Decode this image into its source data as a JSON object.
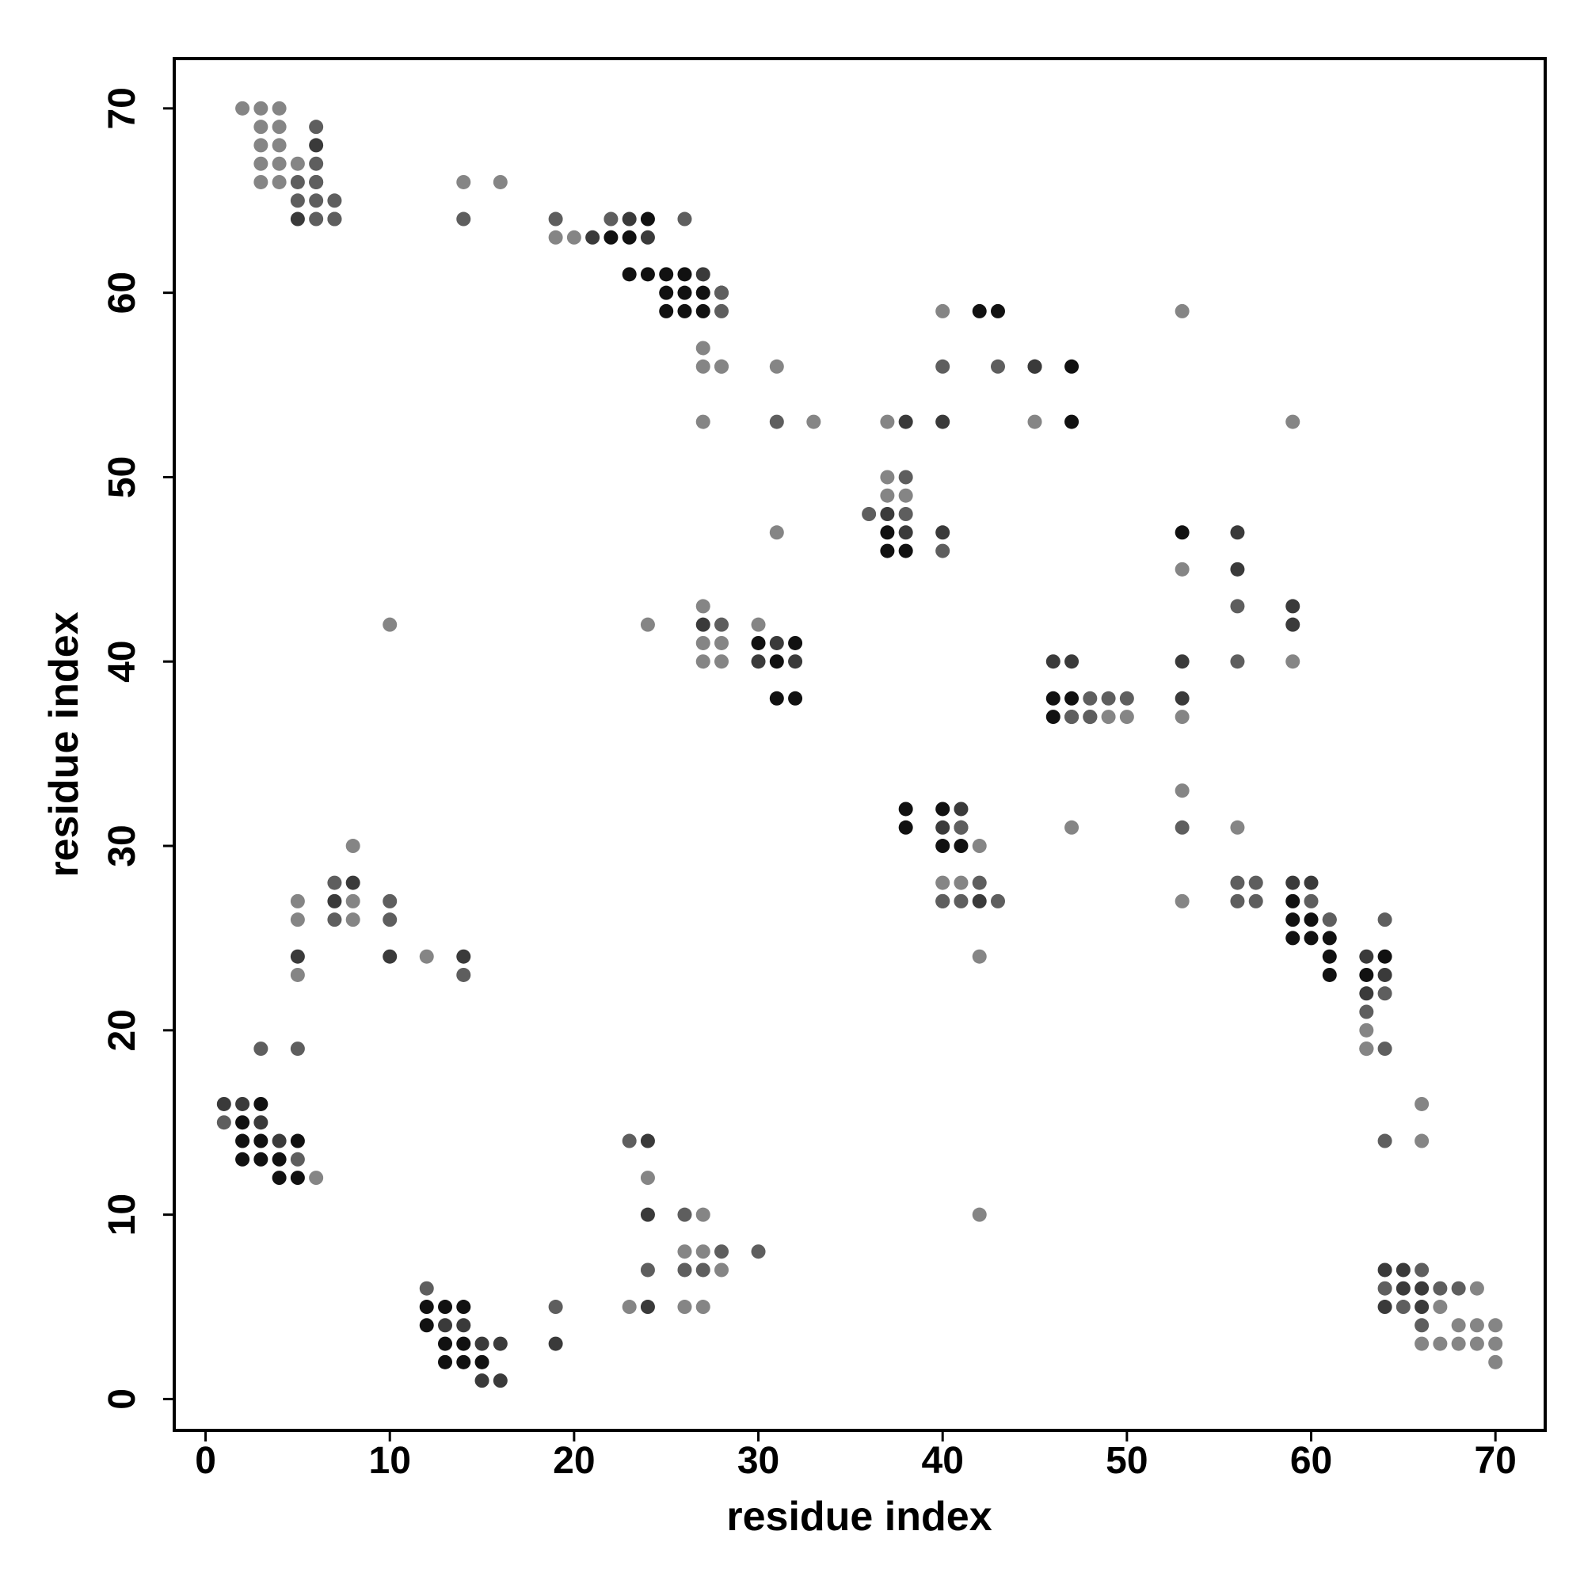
{
  "chart_data": {
    "type": "scatter",
    "xlabel": "residue index",
    "ylabel": "residue index",
    "xlim": [
      -1.7,
      72.7
    ],
    "ylim": [
      -1.7,
      72.7
    ],
    "xticks": [
      0,
      10,
      20,
      30,
      40,
      50,
      60,
      70
    ],
    "yticks": [
      0,
      10,
      20,
      30,
      40,
      50,
      60,
      70
    ],
    "series": [
      {
        "color": "#111111",
        "x": [
          24,
          22,
          23,
          23,
          24,
          25,
          26,
          25,
          26,
          27,
          25,
          26,
          27,
          42,
          43,
          45,
          47,
          47,
          37,
          53,
          37,
          38,
          30,
          32,
          31,
          31,
          32,
          46,
          47,
          46,
          38,
          40,
          38,
          40,
          41,
          59,
          59,
          60,
          59,
          60,
          61,
          61,
          64,
          63,
          61,
          3,
          2,
          2,
          3,
          5,
          2,
          3,
          4,
          4,
          5,
          12,
          13,
          14,
          12,
          13,
          14,
          13,
          14,
          15
        ],
        "y": [
          64,
          63,
          63,
          61,
          61,
          61,
          61,
          60,
          60,
          60,
          59,
          59,
          59,
          59,
          59,
          56,
          56,
          53,
          47,
          47,
          46,
          46,
          41,
          41,
          40,
          38,
          38,
          38,
          38,
          37,
          32,
          32,
          31,
          30,
          30,
          27,
          26,
          26,
          25,
          25,
          25,
          24,
          24,
          23,
          23,
          16,
          15,
          14,
          14,
          14,
          13,
          13,
          13,
          12,
          12,
          5,
          5,
          5,
          4,
          3,
          3,
          2,
          2,
          2
        ]
      },
      {
        "color": "#3a3a3a",
        "x": [
          6,
          6,
          5,
          23,
          21,
          24,
          27,
          28,
          45,
          38,
          40,
          37,
          38,
          40,
          56,
          56,
          59,
          27,
          59,
          31,
          32,
          30,
          46,
          47,
          53,
          53,
          47,
          48,
          41,
          40,
          41,
          8,
          59,
          60,
          7,
          42,
          61,
          5,
          10,
          14,
          63,
          64,
          63,
          1,
          2,
          3,
          4,
          24,
          24,
          64,
          65,
          65,
          66,
          24,
          64,
          66,
          13,
          14,
          15,
          16,
          19,
          15,
          16
        ],
        "y": [
          68,
          66,
          64,
          64,
          63,
          63,
          61,
          60,
          56,
          53,
          53,
          48,
          47,
          47,
          47,
          45,
          43,
          42,
          42,
          41,
          40,
          40,
          40,
          40,
          40,
          38,
          37,
          37,
          32,
          31,
          31,
          28,
          28,
          28,
          27,
          27,
          26,
          24,
          24,
          24,
          24,
          23,
          22,
          16,
          16,
          15,
          14,
          14,
          10,
          7,
          7,
          6,
          6,
          5,
          5,
          5,
          4,
          4,
          3,
          3,
          3,
          1,
          1
        ]
      },
      {
        "color": "#5e5e5e",
        "x": [
          6,
          6,
          5,
          6,
          7,
          5,
          6,
          7,
          6,
          7,
          14,
          19,
          22,
          26,
          28,
          28,
          31,
          40,
          43,
          38,
          36,
          38,
          40,
          56,
          28,
          56,
          48,
          49,
          50,
          47,
          48,
          53,
          41,
          40,
          7,
          42,
          56,
          57,
          10,
          40,
          41,
          43,
          56,
          57,
          60,
          7,
          10,
          61,
          64,
          14,
          64,
          63,
          3,
          5,
          63,
          64,
          1,
          5,
          23,
          64,
          26,
          28,
          30,
          24,
          26,
          27,
          66,
          12,
          64,
          67,
          68,
          19,
          65,
          66
        ],
        "y": [
          69,
          67,
          66,
          65,
          65,
          65,
          64,
          64,
          66,
          64,
          64,
          64,
          64,
          64,
          60,
          59,
          53,
          56,
          56,
          50,
          48,
          48,
          46,
          43,
          42,
          40,
          38,
          38,
          38,
          37,
          37,
          31,
          31,
          27,
          28,
          28,
          28,
          28,
          27,
          27,
          27,
          27,
          27,
          27,
          27,
          26,
          26,
          26,
          26,
          23,
          22,
          21,
          19,
          19,
          19,
          19,
          15,
          13,
          14,
          14,
          10,
          8,
          8,
          7,
          7,
          7,
          7,
          6,
          6,
          6,
          6,
          5,
          5,
          4
        ]
      },
      {
        "color": "#858585",
        "x": [
          2,
          3,
          4,
          3,
          4,
          3,
          4,
          3,
          4,
          5,
          3,
          4,
          14,
          16,
          19,
          20,
          40,
          53,
          27,
          28,
          27,
          28,
          31,
          27,
          33,
          37,
          45,
          59,
          37,
          37,
          38,
          31,
          53,
          27,
          10,
          24,
          30,
          27,
          28,
          27,
          28,
          59,
          49,
          50,
          53,
          53,
          47,
          56,
          8,
          42,
          40,
          41,
          5,
          8,
          53,
          5,
          8,
          12,
          42,
          5,
          63,
          63,
          66,
          66,
          6,
          24,
          27,
          42,
          26,
          27,
          28,
          23,
          26,
          27,
          69,
          67,
          68,
          69,
          70,
          66,
          67,
          68,
          69,
          70,
          70
        ],
        "y": [
          70,
          70,
          70,
          69,
          69,
          68,
          68,
          67,
          67,
          67,
          66,
          66,
          66,
          66,
          63,
          63,
          59,
          59,
          57,
          56,
          56,
          56,
          56,
          53,
          53,
          53,
          53,
          53,
          50,
          49,
          49,
          47,
          45,
          43,
          42,
          42,
          42,
          41,
          41,
          40,
          40,
          40,
          37,
          37,
          37,
          33,
          31,
          31,
          30,
          30,
          28,
          28,
          27,
          27,
          27,
          26,
          26,
          24,
          24,
          23,
          20,
          19,
          16,
          14,
          12,
          12,
          10,
          10,
          8,
          8,
          7,
          5,
          5,
          5,
          6,
          5,
          4,
          4,
          4,
          3,
          3,
          3,
          3,
          3,
          2
        ]
      }
    ]
  }
}
